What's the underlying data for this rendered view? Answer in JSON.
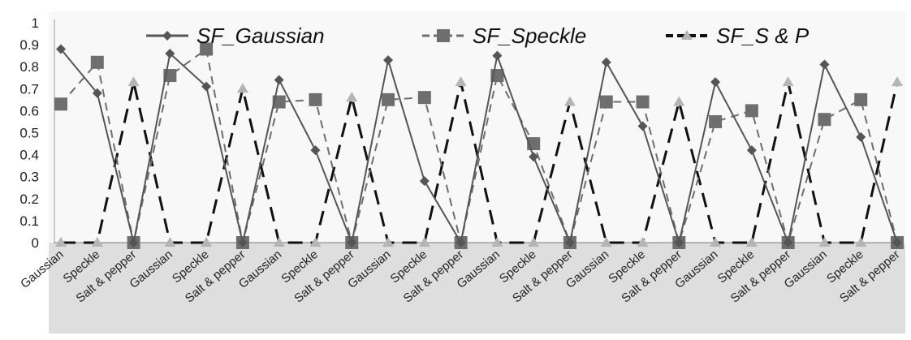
{
  "chart_data": {
    "type": "line",
    "title": "",
    "xlabel": "",
    "ylabel": "",
    "ylim": [
      0,
      1
    ],
    "yticks": [
      "0",
      "0.1",
      "0.2",
      "0.3",
      "0.4",
      "0.5",
      "0.6",
      "0.7",
      "0.8",
      "0.9",
      "1"
    ],
    "categories": [
      "Gaussian",
      "Speckle",
      "Salt & pepper",
      "Gaussian",
      "Speckle",
      "Salt & pepper",
      "Gaussian",
      "Speckle",
      "Salt & pepper",
      "Gaussian",
      "Speckle",
      "Salt & pepper",
      "Gaussian",
      "Speckle",
      "Salt & pepper",
      "Gaussian",
      "Speckle",
      "Salt & pepper",
      "Gaussian",
      "Speckle",
      "Salt & pepper",
      "Gaussian",
      "Speckle",
      "Salt & pepper"
    ],
    "legend_position": "top",
    "grid": false,
    "series": [
      {
        "name": "SF_Gaussian",
        "marker": "diamond",
        "dash": "solid",
        "color": "#555555",
        "values": [
          0.88,
          0.68,
          0,
          0.86,
          0.71,
          0,
          0.74,
          0.42,
          0,
          0.83,
          0.28,
          0,
          0.85,
          0.39,
          0,
          0.82,
          0.53,
          0,
          0.73,
          0.42,
          0,
          0.81,
          0.48,
          0
        ]
      },
      {
        "name": "SF_Speckle",
        "marker": "square",
        "dash": "dash",
        "color": "#6e6e6e",
        "values": [
          0.63,
          0.82,
          0,
          0.76,
          0.88,
          0,
          0.64,
          0.65,
          0,
          0.65,
          0.66,
          0,
          0.76,
          0.45,
          0,
          0.64,
          0.64,
          0,
          0.55,
          0.6,
          0,
          0.56,
          0.65,
          0
        ]
      },
      {
        "name": "SF_S & P",
        "marker": "triangle",
        "dash": "longdash",
        "color": "#111111",
        "values": [
          0,
          0,
          0.73,
          0,
          0,
          0.7,
          0,
          0,
          0.66,
          0,
          0,
          0.73,
          0,
          0,
          0.64,
          0,
          0,
          0.64,
          0,
          0,
          0.73,
          0,
          0,
          0.73
        ]
      }
    ]
  }
}
